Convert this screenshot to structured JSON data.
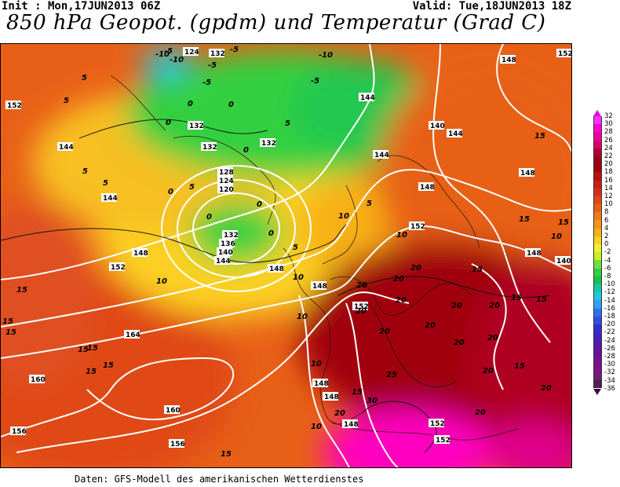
{
  "header": {
    "init": "Init : Mon,17JUN2013 06Z",
    "valid": "Valid: Tue,18JUN2013 18Z",
    "title": "850 hPa Geopot. (gpdm) und Temperatur (Grad C)"
  },
  "footer": "Daten: GFS-Modell des amerikanischen Wetterdienstes",
  "legend": {
    "labels": [
      "32",
      "30",
      "28",
      "26",
      "24",
      "22",
      "20",
      "18",
      "16",
      "14",
      "12",
      "10",
      "8",
      "6",
      "4",
      "2",
      "0",
      "-2",
      "-4",
      "-6",
      "-8",
      "-10",
      "-12",
      "-14",
      "-16",
      "-18",
      "-20",
      "-22",
      "-24",
      "-26",
      "-28",
      "-30",
      "-32",
      "-34",
      "-36"
    ],
    "colors": [
      "#ff30ff",
      "#ff00d0",
      "#f0009a",
      "#d8006a",
      "#b00030",
      "#980018",
      "#a00010",
      "#b81010",
      "#c82018",
      "#d83018",
      "#e04818",
      "#e86018",
      "#f07a18",
      "#f49418",
      "#f8b018",
      "#fcd020",
      "#f0f030",
      "#c8f020",
      "#70e040",
      "#30d040",
      "#18c050",
      "#18c8a0",
      "#20c8e0",
      "#30a0f0",
      "#3070f0",
      "#3050e0",
      "#3030d0",
      "#4020c0",
      "#5818b0",
      "#6810a0",
      "#781090",
      "#801088",
      "#702070",
      "#502050"
    ],
    "arrow_top_color": "#e800e8",
    "arrow_bottom_color": "#3a0a4a"
  },
  "map": {
    "geopotential_labels": [
      "124",
      "132",
      "148",
      "152",
      "144",
      "140",
      "144",
      "144",
      "148",
      "148",
      "156",
      "152",
      "148",
      "152",
      "148",
      "144",
      "136",
      "128",
      "124",
      "120",
      "132",
      "136",
      "140",
      "144",
      "148",
      "148",
      "152",
      "164",
      "160",
      "160",
      "156",
      "156",
      "148",
      "148",
      "152",
      "152",
      "148",
      "148",
      "140"
    ],
    "temperature_labels": [
      "-10",
      "-5",
      "-5",
      "-10",
      "-5",
      "-10",
      "-5",
      "-5",
      "5",
      "0",
      "0",
      "-5",
      "0",
      "5",
      "5",
      "5",
      "0",
      "5",
      "0",
      "0",
      "0",
      "0",
      "5",
      "5",
      "10",
      "10",
      "5",
      "10",
      "10",
      "15",
      "15",
      "15",
      "15",
      "15",
      "15",
      "15",
      "10",
      "10",
      "10",
      "15",
      "20",
      "20",
      "20",
      "20",
      "20",
      "20",
      "20",
      "20",
      "20",
      "20",
      "20",
      "25",
      "30",
      "20",
      "20",
      "20",
      "15",
      "15",
      "15",
      "15",
      "5",
      "10",
      "15",
      "15",
      "20",
      "15"
    ]
  }
}
